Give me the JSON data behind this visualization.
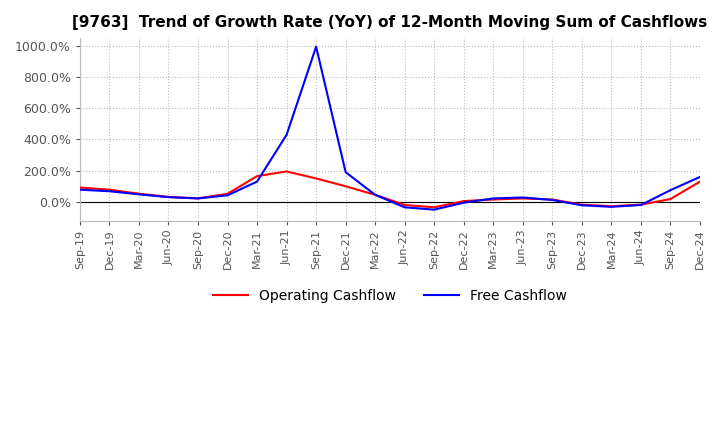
{
  "title": "[9763]  Trend of Growth Rate (YoY) of 12-Month Moving Sum of Cashflows",
  "title_fontsize": 11,
  "ylim": [
    -120,
    1050
  ],
  "yticks": [
    0,
    200,
    400,
    600,
    800,
    1000
  ],
  "ytick_labels": [
    "0.0%",
    "200.0%",
    "400.0%",
    "600.0%",
    "800.0%",
    "1000.0%"
  ],
  "background_color": "#ffffff",
  "grid_color": "#bbbbbb",
  "legend_entries": [
    "Operating Cashflow",
    "Free Cashflow"
  ],
  "line_colors": [
    "#ff0000",
    "#0000ff"
  ],
  "x_labels": [
    "Sep-19",
    "Dec-19",
    "Mar-20",
    "Jun-20",
    "Sep-20",
    "Dec-20",
    "Mar-21",
    "Jun-21",
    "Sep-21",
    "Dec-21",
    "Mar-22",
    "Jun-22",
    "Sep-22",
    "Dec-22",
    "Mar-23",
    "Jun-23",
    "Sep-23",
    "Dec-23",
    "Mar-24",
    "Jun-24",
    "Sep-24",
    "Dec-24"
  ],
  "operating_cashflow": [
    92,
    78,
    52,
    32,
    22,
    52,
    165,
    195,
    150,
    100,
    45,
    -20,
    -35,
    5,
    15,
    22,
    15,
    -18,
    -28,
    -18,
    18,
    130
  ],
  "free_cashflow": [
    78,
    68,
    48,
    30,
    22,
    42,
    130,
    430,
    995,
    190,
    45,
    -35,
    -50,
    -5,
    22,
    28,
    12,
    -22,
    -32,
    -20,
    75,
    160
  ]
}
